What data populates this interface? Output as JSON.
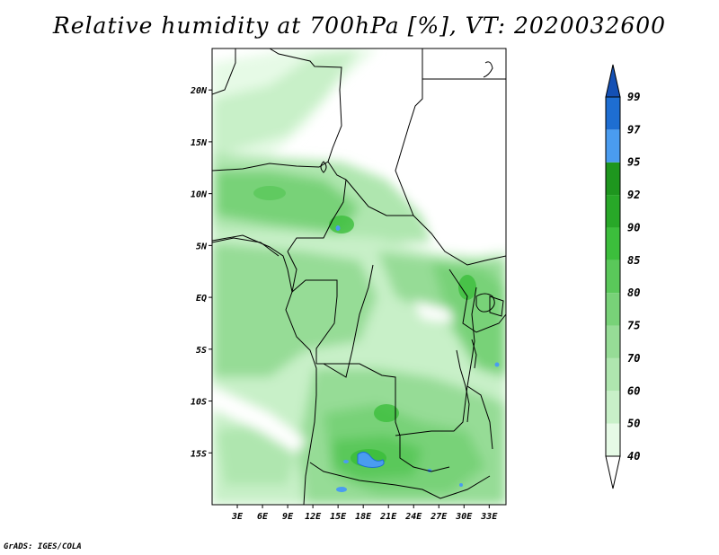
{
  "title": "Relative humidity at 700hPa [%], VT: 2020032600",
  "credit": "GrADS: IGES/COLA",
  "map": {
    "lon_range": [
      0,
      35
    ],
    "lat_range": [
      -20,
      24
    ],
    "lat_ticks": [
      {
        "value": 20,
        "label": "20N"
      },
      {
        "value": 15,
        "label": "15N"
      },
      {
        "value": 10,
        "label": "10N"
      },
      {
        "value": 5,
        "label": "5N"
      },
      {
        "value": 0,
        "label": "EQ"
      },
      {
        "value": -5,
        "label": "5S"
      },
      {
        "value": -10,
        "label": "10S"
      },
      {
        "value": -15,
        "label": "15S"
      }
    ],
    "lon_ticks": [
      {
        "value": 3,
        "label": "3E"
      },
      {
        "value": 6,
        "label": "6E"
      },
      {
        "value": 9,
        "label": "9E"
      },
      {
        "value": 12,
        "label": "12E"
      },
      {
        "value": 15,
        "label": "15E"
      },
      {
        "value": 18,
        "label": "18E"
      },
      {
        "value": 21,
        "label": "21E"
      },
      {
        "value": 24,
        "label": "24E"
      },
      {
        "value": 27,
        "label": "27E"
      },
      {
        "value": 30,
        "label": "30E"
      },
      {
        "value": 33,
        "label": "33E"
      }
    ]
  },
  "colorbar": {
    "levels": [
      "40",
      "50",
      "60",
      "70",
      "75",
      "80",
      "85",
      "90",
      "92",
      "95",
      "97",
      "99"
    ],
    "colors": [
      "#ffffff",
      "#e6fae6",
      "#c8f0c8",
      "#afe6af",
      "#96dc96",
      "#78d278",
      "#5ac85a",
      "#3cbe3c",
      "#28a828",
      "#1e961e",
      "#4a9cf0",
      "#1e6ed2",
      "#1450b4"
    ]
  }
}
